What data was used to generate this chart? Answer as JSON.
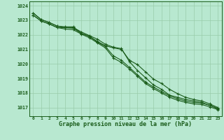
{
  "title": "Graphe pression niveau de la mer (hPa)",
  "background_color": "#b8e8d0",
  "plot_bg_color": "#b8e8d0",
  "grid_color": "#99ccaa",
  "line_color": "#1a5c1a",
  "xlim": [
    -0.5,
    23.5
  ],
  "ylim": [
    1016.4,
    1024.3
  ],
  "y_ticks": [
    1017,
    1018,
    1019,
    1020,
    1021,
    1022,
    1023,
    1024
  ],
  "x_ticks": [
    0,
    1,
    2,
    3,
    4,
    5,
    6,
    7,
    8,
    9,
    10,
    11,
    12,
    13,
    14,
    15,
    16,
    17,
    18,
    19,
    20,
    21,
    22,
    23
  ],
  "series": {
    "line1": [
      1023.5,
      1023.05,
      1022.85,
      1022.6,
      1022.55,
      1022.55,
      1022.1,
      1021.9,
      1021.55,
      1021.25,
      1021.1,
      1021.0,
      1020.25,
      1019.95,
      1019.45,
      1018.95,
      1018.65,
      1018.25,
      1017.95,
      1017.7,
      1017.55,
      1017.45,
      1017.25,
      1017.0
    ],
    "line2": [
      1023.5,
      1023.05,
      1022.85,
      1022.6,
      1022.5,
      1022.45,
      1022.1,
      1021.9,
      1021.5,
      1021.2,
      1020.55,
      1020.25,
      1019.75,
      1019.25,
      1018.75,
      1018.4,
      1018.1,
      1017.8,
      1017.6,
      1017.45,
      1017.35,
      1017.3,
      1017.15,
      1016.95
    ],
    "line3": [
      1023.35,
      1022.95,
      1022.75,
      1022.5,
      1022.5,
      1022.5,
      1022.2,
      1021.95,
      1021.7,
      1021.35,
      1021.15,
      1021.05,
      1020.15,
      1019.55,
      1019.05,
      1018.55,
      1018.25,
      1017.85,
      1017.7,
      1017.55,
      1017.45,
      1017.35,
      1017.15,
      1016.9
    ],
    "line4": [
      1023.35,
      1022.95,
      1022.75,
      1022.5,
      1022.4,
      1022.35,
      1022.05,
      1021.8,
      1021.45,
      1021.1,
      1020.4,
      1020.1,
      1019.65,
      1019.15,
      1018.65,
      1018.3,
      1018.0,
      1017.7,
      1017.5,
      1017.35,
      1017.25,
      1017.2,
      1017.05,
      1016.85
    ]
  }
}
